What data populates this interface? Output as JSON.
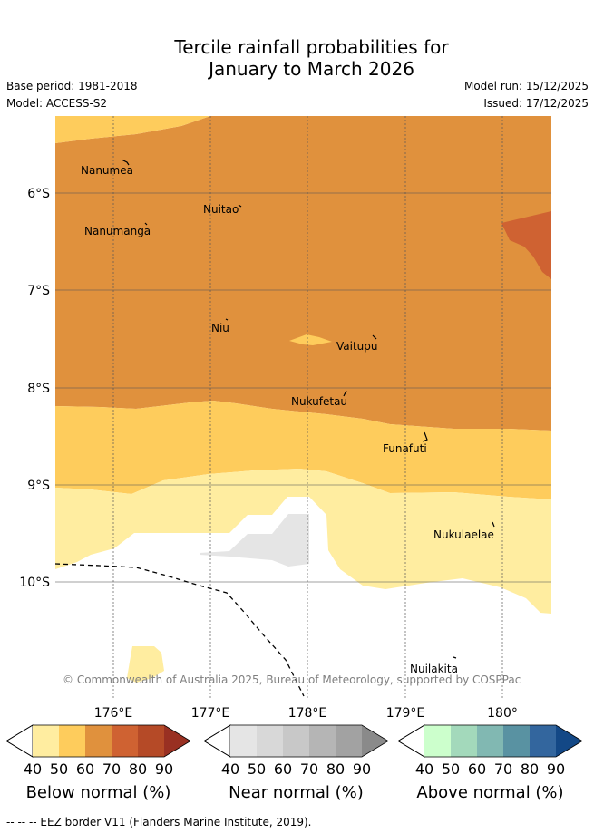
{
  "title": {
    "line1": "Tercile rainfall probabilities for",
    "line2": "January to March 2026"
  },
  "meta": {
    "base_period": "Base period: 1981-2018",
    "model": "Model: ACCESS-S2",
    "model_run": "Model run: 15/12/2025",
    "issued": "Issued: 17/12/2025"
  },
  "map": {
    "lat_labels": [
      "6°S",
      "7°S",
      "8°S",
      "9°S",
      "10°S"
    ],
    "lon_labels": [
      "176°E",
      "177°E",
      "178°E",
      "179°E",
      "180°"
    ],
    "islands": [
      "Nanumea",
      "Nuitao",
      "Nanumanga",
      "Niu",
      "Vaitupu",
      "Nukufetau",
      "Funafuti",
      "Nukulaelae",
      "Nuilakita"
    ],
    "copyright": "© Commonwealth of Australia 2025, Bureau of Meteorology, supported by COSPPac"
  },
  "colorbars": [
    {
      "title": "Below normal (%)",
      "ticks": [
        "40",
        "50",
        "60",
        "70",
        "80",
        "90"
      ],
      "colors": [
        "#ffeda0",
        "#fecc5c",
        "#e0913d",
        "#cf6232",
        "#b54a27",
        "#993022"
      ]
    },
    {
      "title": "Near normal (%)",
      "ticks": [
        "40",
        "50",
        "60",
        "70",
        "80",
        "90"
      ],
      "colors": [
        "#e5e5e5",
        "#d8d8d8",
        "#c8c8c8",
        "#b5b5b5",
        "#a2a2a2",
        "#8a8a8a"
      ]
    },
    {
      "title": "Above normal (%)",
      "ticks": [
        "40",
        "50",
        "60",
        "70",
        "80",
        "90"
      ],
      "colors": [
        "#ccffcc",
        "#a3d9bb",
        "#81b8b2",
        "#5992a2",
        "#33669e",
        "#134886"
      ]
    }
  ],
  "footer": "--  --  -- EEZ border V11 (Flanders Marine Institute, 2019)."
}
